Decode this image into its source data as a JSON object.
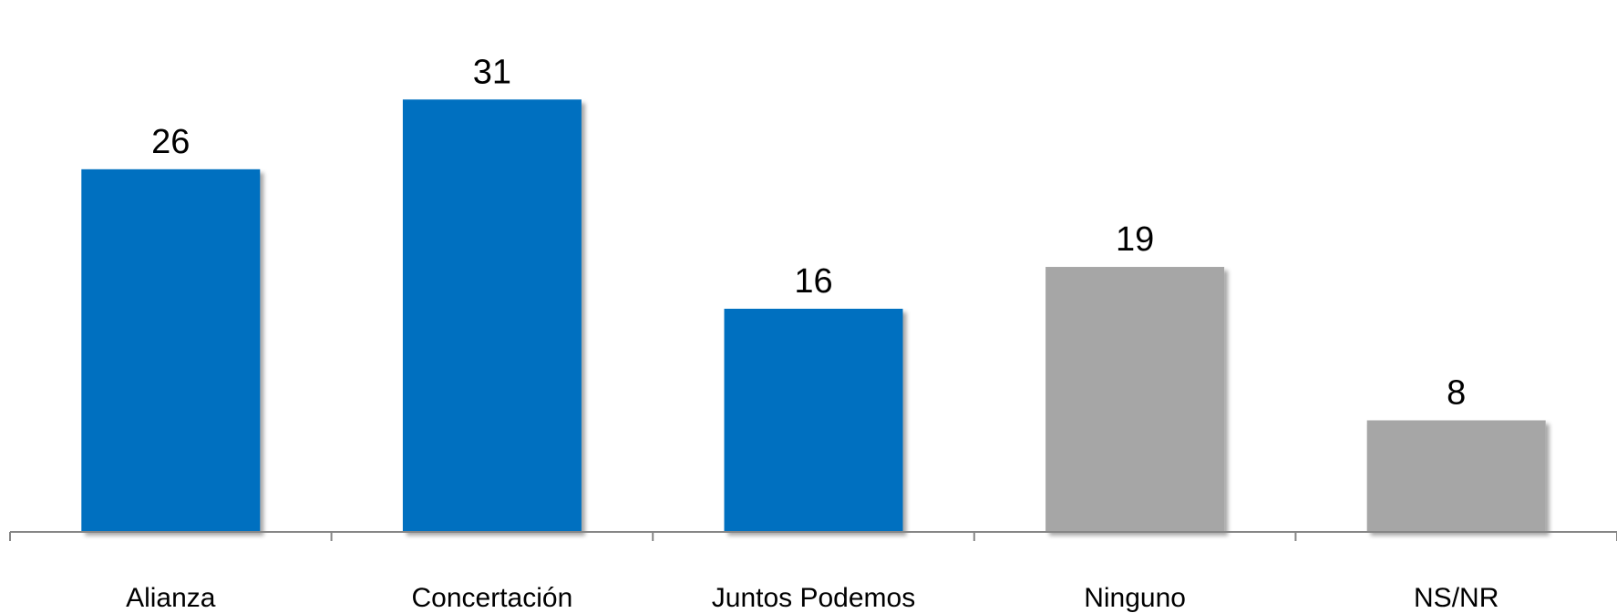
{
  "chart_data": {
    "type": "bar",
    "categories": [
      "Alianza",
      "Concertación",
      "Juntos Podemos",
      "Ninguno",
      "NS/NR"
    ],
    "values": [
      26,
      31,
      16,
      19,
      8
    ],
    "data_labels": [
      "26",
      "31",
      "16",
      "19",
      "8"
    ],
    "colors": [
      "#0070C0",
      "#0070C0",
      "#0070C0",
      "#A6A6A6",
      "#A6A6A6"
    ],
    "ylim": [
      0,
      35
    ],
    "grid": false,
    "legend": "none",
    "title": "",
    "xlabel": "",
    "ylabel": ""
  }
}
